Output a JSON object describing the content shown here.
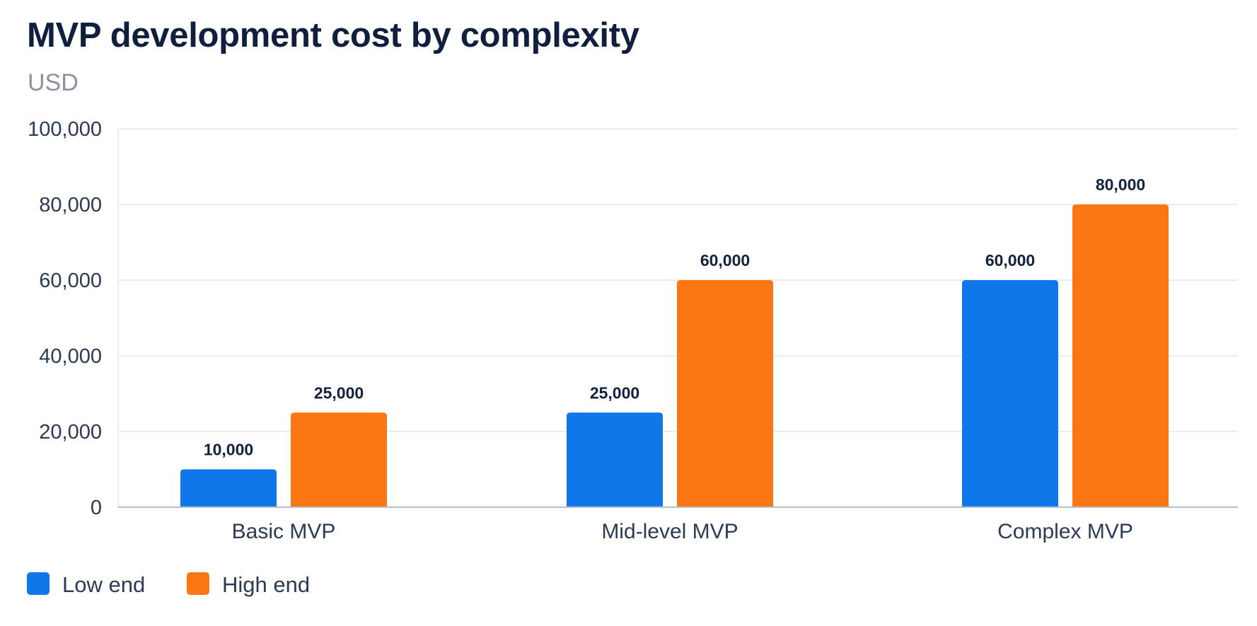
{
  "chart_data": {
    "type": "bar",
    "title": "MVP development cost by complexity",
    "subtitle": "USD",
    "xlabel": "",
    "ylabel": "",
    "categories": [
      "Basic MVP",
      "Mid-level MVP",
      "Complex MVP"
    ],
    "series": [
      {
        "name": "Low end",
        "values": [
          10000,
          25000,
          60000
        ],
        "color": "#0f77ea",
        "labels": [
          "10,000",
          "25,000",
          "60,000"
        ]
      },
      {
        "name": "High end",
        "values": [
          25000,
          60000,
          80000
        ],
        "color": "#fd7614",
        "labels": [
          "25,000",
          "60,000",
          "80,000"
        ]
      }
    ],
    "ylim": [
      0,
      100000
    ],
    "yticks": [
      0,
      20000,
      40000,
      60000,
      80000,
      100000
    ],
    "ytick_labels": [
      "0",
      "20,000",
      "40,000",
      "60,000",
      "80,000",
      "100,000"
    ],
    "grid": true,
    "legend": "bottom-left",
    "colors": {
      "title": "#0f1f3d",
      "subtitle": "#8a93a3",
      "grid": "#e3e6eb",
      "axis": "#b8bfca"
    }
  }
}
